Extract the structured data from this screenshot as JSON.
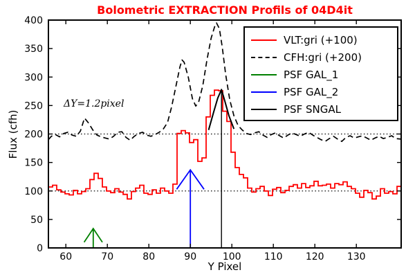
{
  "title": {
    "text": "Bolometric EXTRACTION Profils of 04D4it",
    "color": "#ff0000"
  },
  "axes": {
    "xlabel": "Y Pixel",
    "ylabel": "Flux (cfh)"
  },
  "annotation": {
    "text": "ΔY=1.2pixel"
  },
  "legend": {
    "position": "upper right",
    "entries": [
      {
        "label": "VLT:gri (+100)",
        "color": "#ff0000",
        "dash": "solid"
      },
      {
        "label": "CFH:gri (+200)",
        "color": "#000000",
        "dash": "dashed"
      },
      {
        "label": "PSF GAL_1",
        "color": "#008000",
        "dash": "solid"
      },
      {
        "label": "PSF GAL_2",
        "color": "#0000ff",
        "dash": "solid"
      },
      {
        "label": "PSF SNGAL",
        "color": "#000000",
        "dash": "solid"
      }
    ]
  },
  "chart_data": {
    "type": "line",
    "title": "Bolometric EXTRACTION Profils of 04D4it",
    "xlabel": "Y Pixel",
    "ylabel": "Flux (cfh)",
    "xlim": [
      55.8,
      140.8
    ],
    "ylim": [
      0,
      400
    ],
    "x_ticks": [
      60,
      70,
      80,
      90,
      100,
      110,
      120,
      130
    ],
    "y_ticks": [
      0,
      50,
      100,
      150,
      200,
      250,
      300,
      350,
      400
    ],
    "grid": false,
    "reference_dotted_lines_y": [
      100,
      200
    ],
    "series": [
      {
        "name": "CFH:gri (+200)",
        "type": "line",
        "style": "dashed",
        "color": "#000000",
        "points": [
          [
            55.8,
            190
          ],
          [
            56.5,
            196
          ],
          [
            57.5,
            199
          ],
          [
            58.5,
            195
          ],
          [
            59.5,
            201
          ],
          [
            60.5,
            203
          ],
          [
            61.5,
            198
          ],
          [
            62.5,
            196
          ],
          [
            63.5,
            205
          ],
          [
            64.5,
            228
          ],
          [
            65.5,
            219
          ],
          [
            66.5,
            207
          ],
          [
            67.5,
            198
          ],
          [
            68.5,
            195
          ],
          [
            69.5,
            193
          ],
          [
            70.5,
            191
          ],
          [
            71.5,
            196
          ],
          [
            72.5,
            203
          ],
          [
            73.5,
            204
          ],
          [
            74.5,
            194
          ],
          [
            75.5,
            189
          ],
          [
            76.5,
            196
          ],
          [
            77.5,
            201
          ],
          [
            78.5,
            203
          ],
          [
            79.5,
            198
          ],
          [
            80.5,
            196
          ],
          [
            81.5,
            199
          ],
          [
            82.5,
            203
          ],
          [
            83.5,
            209
          ],
          [
            84.5,
            220
          ],
          [
            85.5,
            248
          ],
          [
            86.5,
            283
          ],
          [
            87.5,
            318
          ],
          [
            88,
            330
          ],
          [
            88.5,
            326
          ],
          [
            89.5,
            300
          ],
          [
            90.5,
            262
          ],
          [
            91.3,
            249
          ],
          [
            92,
            256
          ],
          [
            93,
            285
          ],
          [
            94,
            330
          ],
          [
            95,
            368
          ],
          [
            96,
            392
          ],
          [
            96.3,
            395
          ],
          [
            97,
            385
          ],
          [
            97.7,
            352
          ],
          [
            98.5,
            305
          ],
          [
            99.5,
            260
          ],
          [
            100.5,
            232
          ],
          [
            101.5,
            215
          ],
          [
            102.5,
            207
          ],
          [
            103.5,
            201
          ],
          [
            104.5,
            199
          ],
          [
            105.5,
            202
          ],
          [
            106.5,
            204
          ],
          [
            107.5,
            198
          ],
          [
            108.5,
            194
          ],
          [
            109.5,
            199
          ],
          [
            110.5,
            202
          ],
          [
            111.5,
            197
          ],
          [
            112.5,
            193
          ],
          [
            113.5,
            198
          ],
          [
            114.5,
            202
          ],
          [
            115.5,
            199
          ],
          [
            116.5,
            196
          ],
          [
            117.5,
            200
          ],
          [
            118.5,
            203
          ],
          [
            119.5,
            198
          ],
          [
            120.5,
            194
          ],
          [
            121.5,
            190
          ],
          [
            122.5,
            187
          ],
          [
            123.5,
            192
          ],
          [
            124.5,
            196
          ],
          [
            125.5,
            191
          ],
          [
            126.5,
            187
          ],
          [
            127.5,
            194
          ],
          [
            128.5,
            197
          ],
          [
            129.5,
            193
          ],
          [
            130.5,
            195
          ],
          [
            131.5,
            197
          ],
          [
            132.5,
            193
          ],
          [
            133.5,
            189
          ],
          [
            134.5,
            193
          ],
          [
            135.5,
            196
          ],
          [
            136.5,
            192
          ],
          [
            137.5,
            194
          ],
          [
            138.5,
            197
          ],
          [
            139.5,
            192
          ],
          [
            140.8,
            191
          ]
        ]
      },
      {
        "name": "VLT:gri (+100)",
        "type": "step",
        "color": "#ff0000",
        "bin_start": 55.8,
        "bin_width": 1,
        "values": [
          107,
          110,
          102,
          98,
          95,
          93,
          101,
          95,
          99,
          104,
          120,
          131,
          122,
          107,
          100,
          97,
          104,
          98,
          94,
          86,
          99,
          105,
          110,
          96,
          94,
          102,
          96,
          105,
          100,
          96,
          112,
          201,
          206,
          202,
          185,
          190,
          152,
          158,
          230,
          268,
          277,
          276,
          240,
          222,
          168,
          141,
          129,
          123,
          105,
          98,
          104,
          108,
          100,
          92,
          103,
          106,
          97,
          101,
          108,
          111,
          105,
          113,
          106,
          109,
          117,
          109,
          110,
          112,
          105,
          113,
          111,
          116,
          108,
          104,
          96,
          89,
          101,
          97,
          86,
          91,
          104,
          96,
          99,
          95,
          108
        ]
      },
      {
        "name": "PSF GAL_1",
        "type": "arrow",
        "color": "#008000",
        "x": 66.6,
        "y_base": 0,
        "y_tip": 34,
        "head_dx": 2.2,
        "head_dy": 24
      },
      {
        "name": "PSF GAL_2",
        "type": "arrow",
        "color": "#0000ff",
        "x": 90,
        "y_base": 0,
        "y_tip": 137,
        "head_dx": 3.3,
        "head_dy": 34
      },
      {
        "name": "PSF SNGAL",
        "type": "peak",
        "color": "#000000",
        "vline_x": 97.5,
        "vline_y0": 0,
        "vline_y1": 278,
        "points": [
          [
            94.4,
            207
          ],
          [
            95.6,
            238
          ],
          [
            96.6,
            263
          ],
          [
            97.5,
            278
          ],
          [
            98.3,
            258
          ],
          [
            99.3,
            232
          ],
          [
            100.5,
            209
          ]
        ]
      }
    ]
  }
}
